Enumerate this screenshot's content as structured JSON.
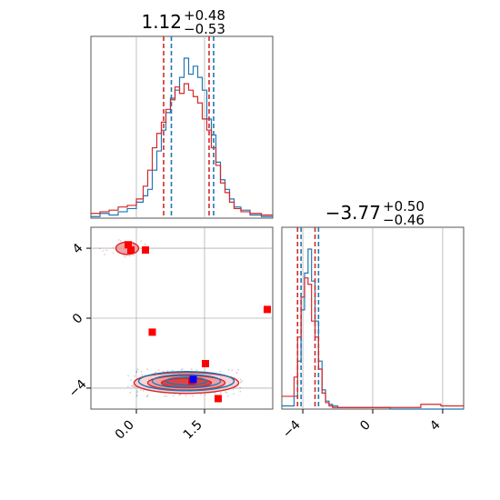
{
  "chart_data": [
    {
      "type": "histogram",
      "panel": "top-left marginal (parameter 1)",
      "title": {
        "value": "1.12",
        "plus": "+0.48",
        "minus": "−0.53"
      },
      "xlim": [
        -1.0,
        3.0
      ],
      "grid": true,
      "series": [
        {
          "color": "#1f77b4",
          "quantiles": [
            0.77,
            1.7
          ],
          "x": [
            -0.9,
            -0.7,
            -0.5,
            -0.3,
            -0.1,
            0.1,
            0.2,
            0.3,
            0.4,
            0.5,
            0.6,
            0.7,
            0.8,
            0.9,
            1.0,
            1.1,
            1.2,
            1.3,
            1.4,
            1.5,
            1.6,
            1.7,
            1.8,
            1.9,
            2.0,
            2.1,
            2.2,
            2.4,
            2.6,
            2.9
          ],
          "density": [
            0.01,
            0.03,
            0.02,
            0.04,
            0.06,
            0.1,
            0.14,
            0.18,
            0.3,
            0.42,
            0.55,
            0.66,
            0.75,
            0.8,
            0.88,
            1.0,
            0.9,
            0.95,
            0.88,
            0.8,
            0.62,
            0.52,
            0.35,
            0.24,
            0.18,
            0.12,
            0.07,
            0.05,
            0.02,
            0.01
          ]
        },
        {
          "color": "#d62728",
          "quantiles": [
            0.6,
            1.6
          ],
          "x": [
            -0.9,
            -0.7,
            -0.5,
            -0.3,
            -0.1,
            0.1,
            0.2,
            0.3,
            0.4,
            0.5,
            0.6,
            0.7,
            0.8,
            0.9,
            1.0,
            1.1,
            1.2,
            1.3,
            1.4,
            1.5,
            1.6,
            1.7,
            1.8,
            1.9,
            2.0,
            2.1,
            2.2,
            2.4,
            2.6,
            2.9
          ],
          "density": [
            0.03,
            0.04,
            0.05,
            0.07,
            0.08,
            0.12,
            0.2,
            0.3,
            0.44,
            0.53,
            0.6,
            0.68,
            0.74,
            0.82,
            0.78,
            0.84,
            0.8,
            0.76,
            0.72,
            0.62,
            0.55,
            0.44,
            0.33,
            0.22,
            0.16,
            0.1,
            0.06,
            0.04,
            0.03,
            0.02
          ]
        }
      ]
    },
    {
      "type": "histogram",
      "panel": "bottom-right marginal (parameter 2)",
      "title": {
        "value": "−3.77",
        "plus": "+0.50",
        "minus": "−0.46"
      },
      "xlim": [
        -5.2,
        5.2
      ],
      "xticks": [
        "−4",
        "0",
        "4"
      ],
      "grid": true,
      "series": [
        {
          "color": "#1f77b4",
          "quantiles": [
            -4.1,
            -3.1
          ],
          "x": [
            -4.6,
            -4.4,
            -4.2,
            -4.0,
            -3.8,
            -3.6,
            -3.4,
            -3.2,
            -3.0,
            -2.8,
            -2.6,
            -2.4,
            -2.2,
            -1.8,
            -1.0,
            0.0,
            2.0,
            3.5,
            4.3
          ],
          "density": [
            0.02,
            0.08,
            0.3,
            0.62,
            0.85,
            1.0,
            0.8,
            0.55,
            0.3,
            0.12,
            0.05,
            0.03,
            0.02,
            0.01,
            0.01,
            0.01,
            0.0,
            0.0,
            0.0
          ]
        },
        {
          "color": "#d62728",
          "quantiles": [
            -4.3,
            -3.3
          ],
          "x": [
            -4.6,
            -4.4,
            -4.2,
            -4.0,
            -3.8,
            -3.6,
            -3.4,
            -3.2,
            -3.0,
            -2.8,
            -2.6,
            -2.4,
            -2.2,
            -1.8,
            -1.0,
            0.0,
            2.0,
            3.5,
            4.3
          ],
          "density": [
            0.08,
            0.2,
            0.45,
            0.7,
            0.82,
            0.78,
            0.55,
            0.45,
            0.25,
            0.1,
            0.04,
            0.02,
            0.01,
            0.01,
            0.01,
            0.01,
            0.01,
            0.03,
            0.02
          ]
        }
      ]
    },
    {
      "type": "scatter",
      "panel": "bottom-left joint (parameter 1 vs parameter 2)",
      "xlim": [
        -1.0,
        3.0
      ],
      "ylim": [
        -5.2,
        5.2
      ],
      "xticks": [
        "0.0",
        "1.5"
      ],
      "yticks": [
        "−4",
        "0",
        "4"
      ],
      "grid": true,
      "contours": [
        {
          "color": "#d62728",
          "cx": 1.1,
          "cy": -3.7,
          "levels": [
            [
              1.15,
              0.6
            ],
            [
              0.85,
              0.42
            ],
            [
              0.55,
              0.26
            ]
          ]
        },
        {
          "color": "#1f77b4",
          "cx": 1.1,
          "cy": -3.6,
          "levels": [
            [
              1.05,
              0.55
            ],
            [
              0.75,
              0.38
            ],
            [
              0.45,
              0.22
            ]
          ]
        }
      ],
      "blob": {
        "color": "#d62728",
        "cx": -0.2,
        "cy": 4.0,
        "rx": 0.25,
        "ry": 0.35
      },
      "markers": [
        {
          "color": "#ff0000",
          "shape": "square",
          "x": -0.18,
          "y": 4.2
        },
        {
          "color": "#ff0000",
          "shape": "square",
          "x": -0.12,
          "y": 3.9
        },
        {
          "color": "#ff0000",
          "shape": "square",
          "x": 0.2,
          "y": 3.9
        },
        {
          "color": "#ff0000",
          "shape": "square",
          "x": 0.35,
          "y": -0.8
        },
        {
          "color": "#ff0000",
          "shape": "square",
          "x": 2.88,
          "y": 0.5
        },
        {
          "color": "#ff0000",
          "shape": "square",
          "x": 1.52,
          "y": -2.6
        },
        {
          "color": "#ff0000",
          "shape": "square",
          "x": 1.8,
          "y": -4.6
        },
        {
          "color": "#ff0000",
          "shape": "square",
          "x": 1.22,
          "y": -3.6
        },
        {
          "color": "#0000ff",
          "shape": "square",
          "x": 1.25,
          "y": -3.5
        }
      ]
    }
  ]
}
